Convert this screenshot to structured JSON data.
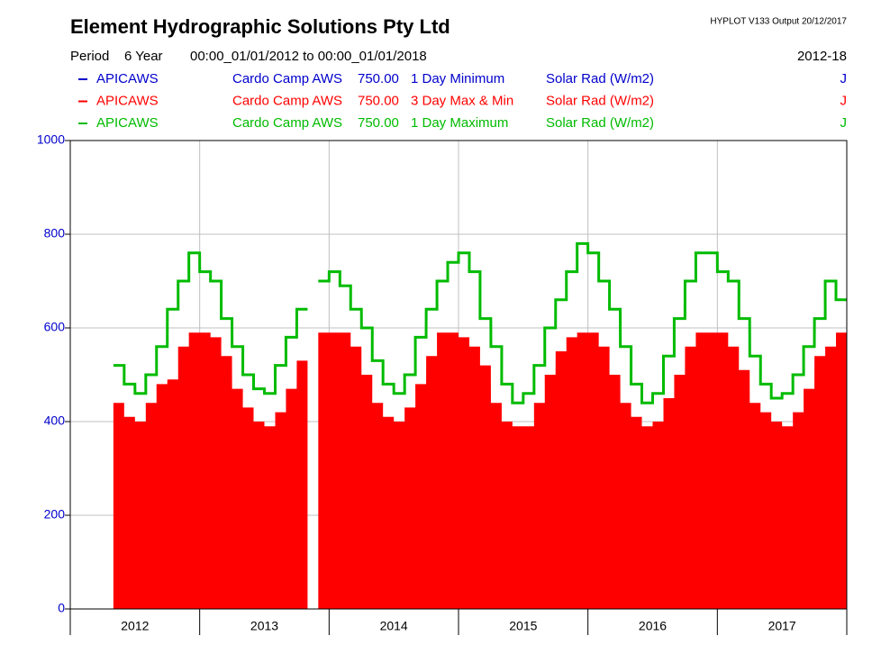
{
  "chart_data": {
    "type": "area-line",
    "title": "Element Hydrographic Solutions Pty Ltd",
    "program": "HYPLOT V133  Output 20/12/2017",
    "period_label": "Period",
    "period": "6 Year",
    "range": "00:00_01/01/2012 to 00:00_01/01/2018",
    "range_code": "2012-18",
    "xlim": [
      2012,
      2018
    ],
    "xticks": [
      {
        "value": 2012.5,
        "label": "2012"
      },
      {
        "value": 2013.5,
        "label": "2013"
      },
      {
        "value": 2014.5,
        "label": "2014"
      },
      {
        "value": 2015.5,
        "label": "2015"
      },
      {
        "value": 2016.5,
        "label": "2016"
      },
      {
        "value": 2017.5,
        "label": "2017"
      }
    ],
    "ylim": [
      0,
      1000
    ],
    "yticks": [
      0,
      200,
      400,
      600,
      800,
      1000
    ],
    "grid": true,
    "x": [
      2012.375,
      2012.458,
      2012.542,
      2012.625,
      2012.708,
      2012.792,
      2012.875,
      2012.958,
      2013.042,
      2013.125,
      2013.208,
      2013.292,
      2013.375,
      2013.458,
      2013.542,
      2013.625,
      2013.708,
      2013.792,
      2013.875,
      2013.958,
      2014.042,
      2014.125,
      2014.208,
      2014.292,
      2014.375,
      2014.458,
      2014.542,
      2014.625,
      2014.708,
      2014.792,
      2014.875,
      2014.958,
      2015.042,
      2015.125,
      2015.208,
      2015.292,
      2015.375,
      2015.458,
      2015.542,
      2015.625,
      2015.708,
      2015.792,
      2015.875,
      2015.958,
      2016.042,
      2016.125,
      2016.208,
      2016.292,
      2016.375,
      2016.458,
      2016.542,
      2016.625,
      2016.708,
      2016.792,
      2016.875,
      2016.958,
      2017.042,
      2017.125,
      2017.208,
      2017.292,
      2017.375,
      2017.458,
      2017.542,
      2017.625,
      2017.708,
      2017.792,
      2017.875,
      2017.958
    ],
    "series": [
      {
        "site": "APICAWS",
        "station": "Cardo Camp AWS",
        "level": "750.00",
        "name": "1 Day Minimum",
        "variable": "Solar Rad (W/m2)",
        "flag": "J",
        "color": "#0000cc",
        "style": "line",
        "values": [
          null,
          null,
          null,
          null,
          null,
          null,
          null,
          null,
          null,
          null,
          null,
          null,
          null,
          null,
          null,
          null,
          null,
          null,
          null,
          null,
          null,
          null,
          null,
          null,
          null,
          null,
          null,
          null,
          null,
          null,
          null,
          null,
          null,
          null,
          null,
          null,
          null,
          null,
          null,
          null,
          null,
          null,
          null,
          null,
          null,
          null,
          null,
          null,
          null,
          null,
          null,
          null,
          null,
          null,
          null,
          null,
          null,
          null,
          null,
          null,
          null,
          null,
          null,
          null,
          null,
          null,
          null,
          null
        ]
      },
      {
        "site": "APICAWS",
        "station": "Cardo Camp AWS",
        "level": "750.00",
        "name": "3 Day Max & Min",
        "variable": "Solar Rad (W/m2)",
        "flag": "J",
        "color": "#ff0000",
        "style": "area",
        "values": [
          440,
          410,
          400,
          440,
          480,
          490,
          560,
          590,
          590,
          580,
          540,
          470,
          430,
          400,
          390,
          420,
          470,
          530,
          null,
          590,
          590,
          590,
          560,
          500,
          440,
          410,
          400,
          430,
          480,
          540,
          590,
          590,
          580,
          560,
          520,
          440,
          400,
          390,
          390,
          440,
          500,
          550,
          580,
          590,
          590,
          560,
          500,
          440,
          410,
          390,
          400,
          450,
          500,
          560,
          590,
          590,
          590,
          560,
          510,
          440,
          420,
          400,
          390,
          420,
          470,
          540,
          560,
          590
        ]
      },
      {
        "site": "APICAWS",
        "station": "Cardo Camp AWS",
        "level": "750.00",
        "name": "1 Day Maximum",
        "variable": "Solar Rad (W/m2)",
        "flag": "J",
        "color": "#00bb00",
        "style": "line",
        "values": [
          520,
          480,
          460,
          500,
          560,
          640,
          700,
          760,
          720,
          700,
          620,
          560,
          500,
          470,
          460,
          520,
          580,
          640,
          null,
          700,
          720,
          690,
          640,
          600,
          530,
          480,
          460,
          500,
          580,
          640,
          700,
          740,
          760,
          720,
          620,
          560,
          480,
          440,
          460,
          520,
          600,
          660,
          720,
          780,
          760,
          700,
          640,
          560,
          480,
          440,
          460,
          540,
          620,
          700,
          760,
          760,
          720,
          700,
          620,
          540,
          480,
          450,
          460,
          500,
          560,
          620,
          700,
          660
        ]
      }
    ]
  }
}
